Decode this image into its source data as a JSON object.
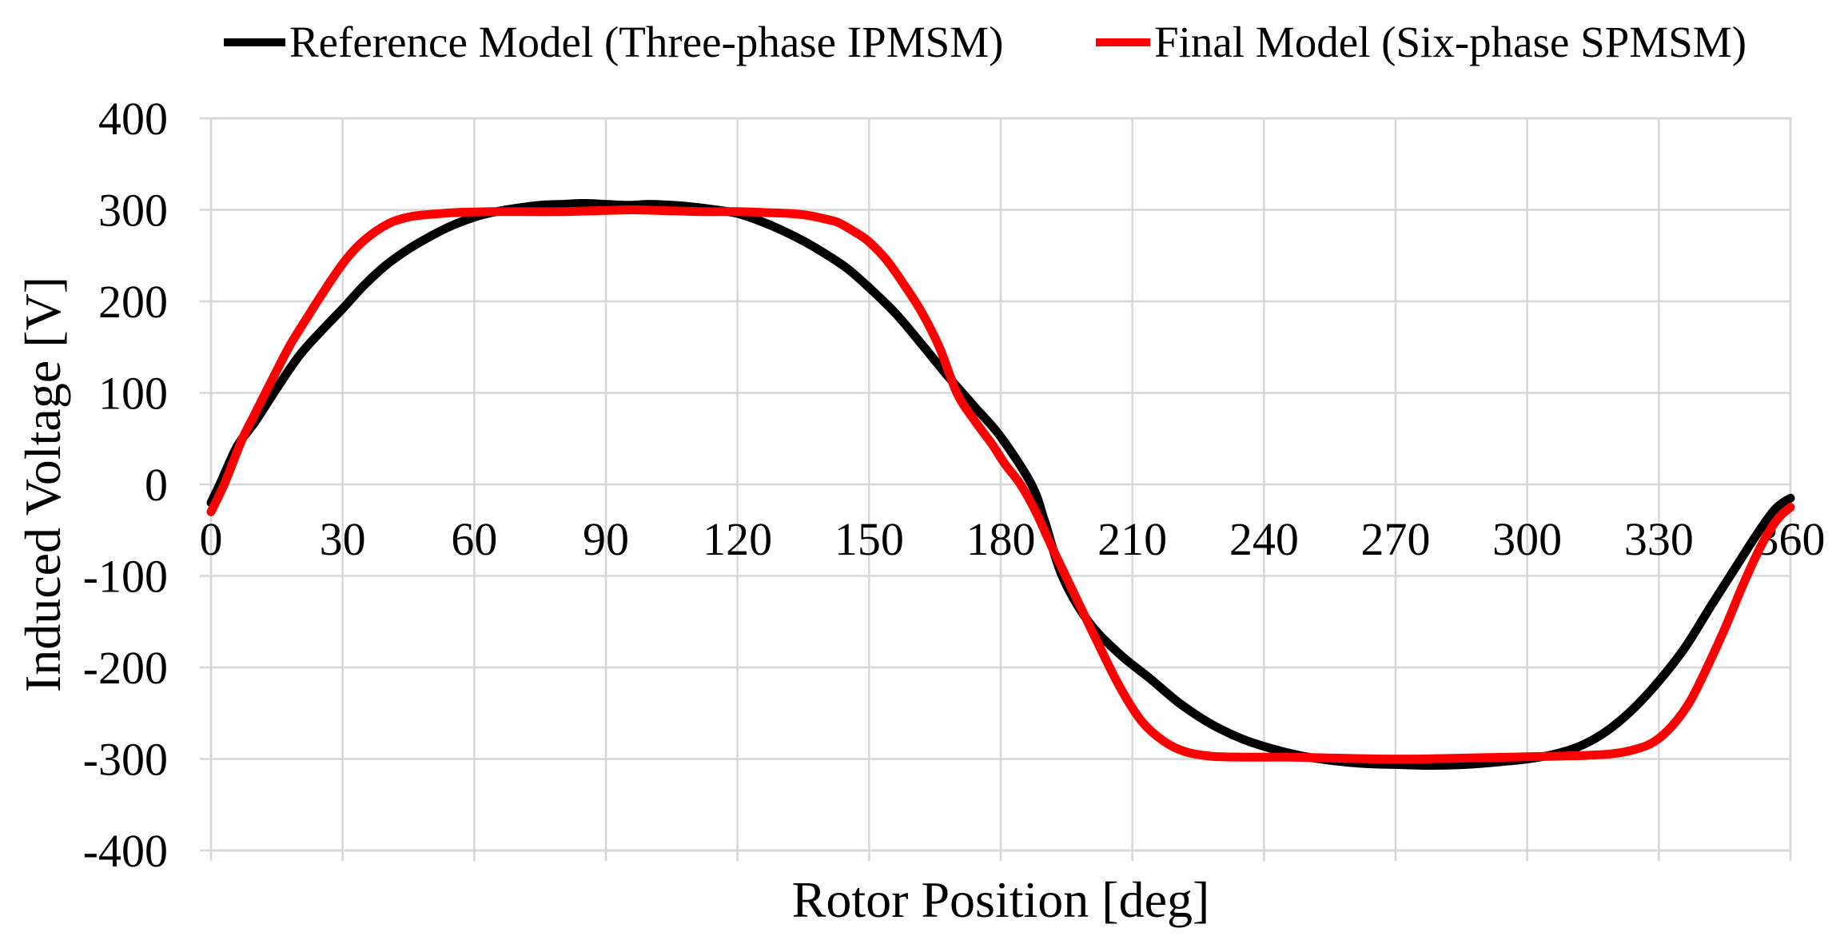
{
  "figure": {
    "background": "#FFFFFF"
  },
  "legend": {
    "position": "top",
    "items": [
      {
        "label": "Reference Model (Three-phase IPMSM)",
        "color": "#000000"
      },
      {
        "label": "Final Model (Six-phase SPMSM)",
        "color": "#FF0000"
      }
    ]
  },
  "chart_data": {
    "type": "line",
    "title": "",
    "xlabel": "Rotor Position [deg]",
    "ylabel": "Induced Voltage [V]",
    "xlim": [
      0,
      360
    ],
    "ylim": [
      -400,
      400
    ],
    "xticks": [
      0,
      30,
      60,
      90,
      120,
      150,
      180,
      210,
      240,
      270,
      300,
      330,
      360
    ],
    "yticks": [
      400,
      300,
      200,
      100,
      0,
      -100,
      -200,
      -300,
      -400
    ],
    "grid": true,
    "grid_color": "#D6D6D6",
    "legend_position": "top",
    "series": [
      {
        "name": "Reference Model (Three-phase IPMSM)",
        "color": "#000000",
        "width": 11,
        "points": [
          [
            0,
            -20
          ],
          [
            2,
            0
          ],
          [
            6,
            42
          ],
          [
            10,
            68
          ],
          [
            15,
            105
          ],
          [
            20,
            140
          ],
          [
            25,
            167
          ],
          [
            30,
            192
          ],
          [
            35,
            218
          ],
          [
            40,
            240
          ],
          [
            45,
            257
          ],
          [
            50,
            271
          ],
          [
            55,
            283
          ],
          [
            60,
            292
          ],
          [
            65,
            298
          ],
          [
            70,
            302
          ],
          [
            75,
            305
          ],
          [
            80,
            306
          ],
          [
            85,
            307
          ],
          [
            90,
            306
          ],
          [
            95,
            305
          ],
          [
            100,
            306
          ],
          [
            105,
            305
          ],
          [
            110,
            303
          ],
          [
            115,
            300
          ],
          [
            120,
            296
          ],
          [
            125,
            288
          ],
          [
            130,
            278
          ],
          [
            135,
            266
          ],
          [
            140,
            252
          ],
          [
            145,
            236
          ],
          [
            150,
            215
          ],
          [
            156,
            187
          ],
          [
            162,
            153
          ],
          [
            168,
            118
          ],
          [
            174,
            85
          ],
          [
            180,
            52
          ],
          [
            187,
            0
          ],
          [
            190,
            -40
          ],
          [
            194,
            -100
          ],
          [
            200,
            -150
          ],
          [
            207,
            -185
          ],
          [
            214,
            -212
          ],
          [
            221,
            -240
          ],
          [
            228,
            -262
          ],
          [
            235,
            -278
          ],
          [
            242,
            -289
          ],
          [
            249,
            -297
          ],
          [
            256,
            -302
          ],
          [
            263,
            -305
          ],
          [
            270,
            -306
          ],
          [
            278,
            -307
          ],
          [
            286,
            -306
          ],
          [
            294,
            -303
          ],
          [
            300,
            -300
          ],
          [
            306,
            -295
          ],
          [
            312,
            -286
          ],
          [
            318,
            -270
          ],
          [
            324,
            -246
          ],
          [
            330,
            -215
          ],
          [
            336,
            -178
          ],
          [
            342,
            -132
          ],
          [
            348,
            -87
          ],
          [
            352,
            -57
          ],
          [
            356,
            -30
          ],
          [
            358,
            -21
          ],
          [
            360,
            -15
          ]
        ]
      },
      {
        "name": "Final Model (Six-phase SPMSM)",
        "color": "#FF0000",
        "width": 11,
        "points": [
          [
            0,
            -30
          ],
          [
            3,
            0
          ],
          [
            7,
            48
          ],
          [
            10,
            77
          ],
          [
            14,
            115
          ],
          [
            18,
            152
          ],
          [
            22,
            183
          ],
          [
            26,
            213
          ],
          [
            30,
            241
          ],
          [
            33,
            258
          ],
          [
            36,
            271
          ],
          [
            39,
            281
          ],
          [
            42,
            288
          ],
          [
            46,
            293
          ],
          [
            50,
            295
          ],
          [
            56,
            297
          ],
          [
            64,
            298
          ],
          [
            72,
            298
          ],
          [
            80,
            298
          ],
          [
            88,
            299
          ],
          [
            96,
            300
          ],
          [
            104,
            299
          ],
          [
            112,
            298
          ],
          [
            120,
            298
          ],
          [
            126,
            297
          ],
          [
            132,
            296
          ],
          [
            136,
            294
          ],
          [
            140,
            290
          ],
          [
            143,
            286
          ],
          [
            147,
            275
          ],
          [
            150,
            265
          ],
          [
            154,
            245
          ],
          [
            158,
            218
          ],
          [
            162,
            188
          ],
          [
            166,
            150
          ],
          [
            170,
            100
          ],
          [
            174,
            70
          ],
          [
            178,
            44
          ],
          [
            181,
            22
          ],
          [
            184.5,
            0
          ],
          [
            188,
            -30
          ],
          [
            192,
            -72
          ],
          [
            197,
            -122
          ],
          [
            202,
            -172
          ],
          [
            207,
            -220
          ],
          [
            212,
            -258
          ],
          [
            217,
            -280
          ],
          [
            222,
            -292
          ],
          [
            228,
            -297
          ],
          [
            236,
            -298
          ],
          [
            246,
            -298
          ],
          [
            256,
            -299
          ],
          [
            266,
            -300
          ],
          [
            276,
            -300
          ],
          [
            286,
            -299
          ],
          [
            296,
            -298
          ],
          [
            306,
            -297
          ],
          [
            314,
            -296
          ],
          [
            320,
            -294
          ],
          [
            325,
            -289
          ],
          [
            329,
            -281
          ],
          [
            333,
            -264
          ],
          [
            337,
            -238
          ],
          [
            341,
            -200
          ],
          [
            345,
            -158
          ],
          [
            349,
            -112
          ],
          [
            353,
            -70
          ],
          [
            356,
            -45
          ],
          [
            358,
            -33
          ],
          [
            360,
            -25
          ]
        ]
      }
    ]
  }
}
